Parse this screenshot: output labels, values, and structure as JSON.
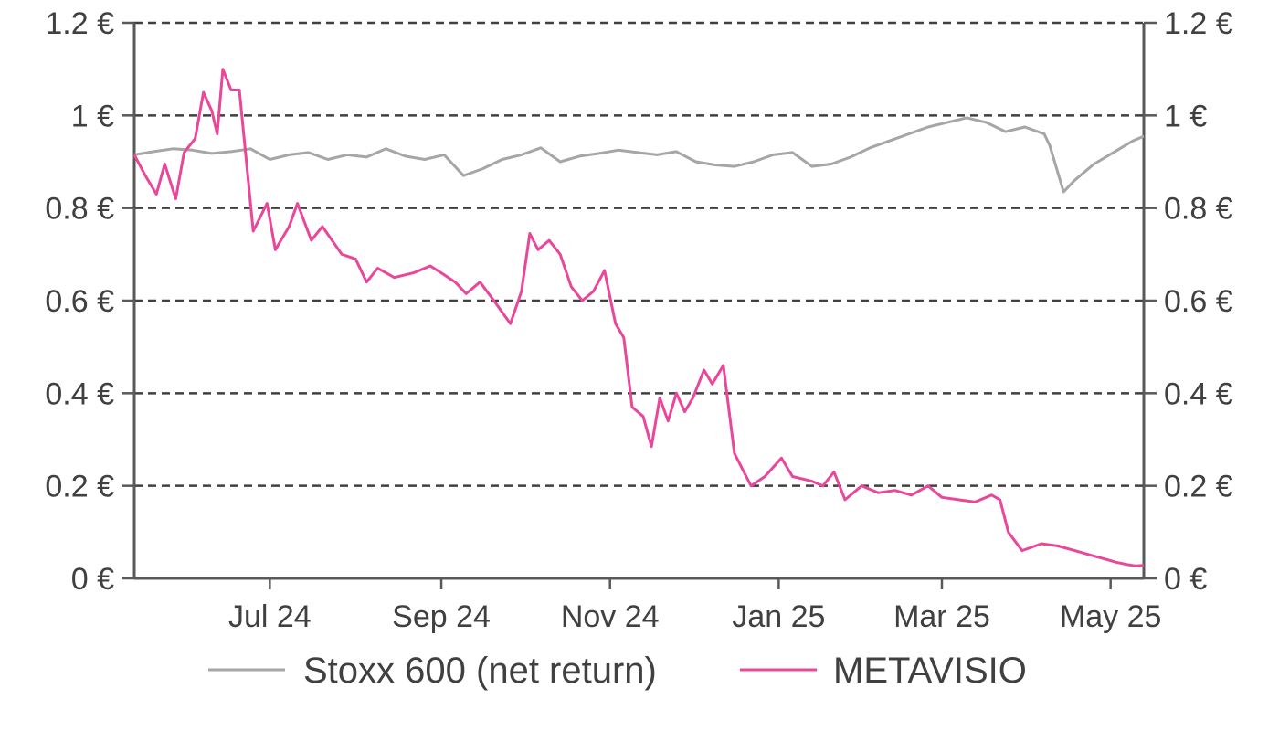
{
  "chart_data": {
    "type": "line",
    "title": "",
    "xlabel": "",
    "ylabel": "",
    "ylim": [
      0,
      1.2
    ],
    "y_ticks": [
      "0 €",
      "0.2 €",
      "0.4 €",
      "0.6 €",
      "0.8 €",
      "1 €",
      "1.2 €"
    ],
    "y_tick_values": [
      0,
      0.2,
      0.4,
      0.6,
      0.8,
      1.0,
      1.2
    ],
    "y_axes": [
      "left",
      "right"
    ],
    "x_ticks": [
      "Jul 24",
      "Sep 24",
      "Nov 24",
      "Jan 25",
      "Mar 25",
      "May 25"
    ],
    "x_tick_dates": [
      "2024-07-01",
      "2024-09-01",
      "2024-11-01",
      "2025-01-01",
      "2025-03-01",
      "2025-05-01"
    ],
    "xlim": [
      "2024-05-13",
      "2025-05-13"
    ],
    "grid": "horizontal-dashed",
    "legend": "bottom",
    "series": [
      {
        "name": "Stoxx 600 (net return)",
        "color": "#a6a6a6",
        "points": [
          [
            "2024-05-13",
            0.915
          ],
          [
            "2024-05-20",
            0.922
          ],
          [
            "2024-05-27",
            0.928
          ],
          [
            "2024-06-03",
            0.925
          ],
          [
            "2024-06-10",
            0.918
          ],
          [
            "2024-06-17",
            0.922
          ],
          [
            "2024-06-24",
            0.928
          ],
          [
            "2024-07-01",
            0.905
          ],
          [
            "2024-07-08",
            0.915
          ],
          [
            "2024-07-15",
            0.92
          ],
          [
            "2024-07-22",
            0.905
          ],
          [
            "2024-07-29",
            0.915
          ],
          [
            "2024-08-05",
            0.91
          ],
          [
            "2024-08-12",
            0.928
          ],
          [
            "2024-08-19",
            0.912
          ],
          [
            "2024-08-26",
            0.905
          ],
          [
            "2024-09-02",
            0.915
          ],
          [
            "2024-09-09",
            0.87
          ],
          [
            "2024-09-16",
            0.885
          ],
          [
            "2024-09-23",
            0.905
          ],
          [
            "2024-09-30",
            0.915
          ],
          [
            "2024-10-07",
            0.93
          ],
          [
            "2024-10-14",
            0.9
          ],
          [
            "2024-10-21",
            0.912
          ],
          [
            "2024-10-28",
            0.918
          ],
          [
            "2024-11-04",
            0.925
          ],
          [
            "2024-11-11",
            0.92
          ],
          [
            "2024-11-18",
            0.915
          ],
          [
            "2024-11-25",
            0.922
          ],
          [
            "2024-12-02",
            0.9
          ],
          [
            "2024-12-09",
            0.893
          ],
          [
            "2024-12-16",
            0.89
          ],
          [
            "2024-12-23",
            0.9
          ],
          [
            "2024-12-30",
            0.915
          ],
          [
            "2025-01-06",
            0.92
          ],
          [
            "2025-01-13",
            0.89
          ],
          [
            "2025-01-20",
            0.895
          ],
          [
            "2025-01-27",
            0.91
          ],
          [
            "2025-02-03",
            0.93
          ],
          [
            "2025-02-10",
            0.945
          ],
          [
            "2025-02-17",
            0.96
          ],
          [
            "2025-02-24",
            0.975
          ],
          [
            "2025-03-03",
            0.985
          ],
          [
            "2025-03-10",
            0.995
          ],
          [
            "2025-03-17",
            0.985
          ],
          [
            "2025-03-24",
            0.965
          ],
          [
            "2025-03-31",
            0.975
          ],
          [
            "2025-04-07",
            0.96
          ],
          [
            "2025-04-09",
            0.935
          ],
          [
            "2025-04-14",
            0.835
          ],
          [
            "2025-04-18",
            0.86
          ],
          [
            "2025-04-25",
            0.895
          ],
          [
            "2025-05-02",
            0.92
          ],
          [
            "2025-05-09",
            0.945
          ],
          [
            "2025-05-13",
            0.955
          ]
        ]
      },
      {
        "name": "METAVISIO",
        "color": "#e8479a",
        "points": [
          [
            "2024-05-13",
            0.915
          ],
          [
            "2024-05-17",
            0.87
          ],
          [
            "2024-05-21",
            0.83
          ],
          [
            "2024-05-24",
            0.895
          ],
          [
            "2024-05-28",
            0.82
          ],
          [
            "2024-05-31",
            0.92
          ],
          [
            "2024-06-04",
            0.95
          ],
          [
            "2024-06-07",
            1.05
          ],
          [
            "2024-06-10",
            1.01
          ],
          [
            "2024-06-12",
            0.96
          ],
          [
            "2024-06-14",
            1.1
          ],
          [
            "2024-06-17",
            1.055
          ],
          [
            "2024-06-20",
            1.055
          ],
          [
            "2024-06-25",
            0.75
          ],
          [
            "2024-06-30",
            0.81
          ],
          [
            "2024-07-03",
            0.71
          ],
          [
            "2024-07-08",
            0.76
          ],
          [
            "2024-07-11",
            0.81
          ],
          [
            "2024-07-16",
            0.73
          ],
          [
            "2024-07-20",
            0.76
          ],
          [
            "2024-07-27",
            0.7
          ],
          [
            "2024-08-01",
            0.69
          ],
          [
            "2024-08-05",
            0.64
          ],
          [
            "2024-08-09",
            0.67
          ],
          [
            "2024-08-15",
            0.65
          ],
          [
            "2024-08-22",
            0.66
          ],
          [
            "2024-08-28",
            0.675
          ],
          [
            "2024-09-01",
            0.66
          ],
          [
            "2024-09-06",
            0.64
          ],
          [
            "2024-09-10",
            0.615
          ],
          [
            "2024-09-15",
            0.64
          ],
          [
            "2024-09-20",
            0.6
          ],
          [
            "2024-09-26",
            0.55
          ],
          [
            "2024-09-30",
            0.62
          ],
          [
            "2024-10-03",
            0.745
          ],
          [
            "2024-10-06",
            0.71
          ],
          [
            "2024-10-10",
            0.73
          ],
          [
            "2024-10-14",
            0.7
          ],
          [
            "2024-10-18",
            0.63
          ],
          [
            "2024-10-22",
            0.6
          ],
          [
            "2024-10-26",
            0.62
          ],
          [
            "2024-10-30",
            0.665
          ],
          [
            "2024-11-03",
            0.55
          ],
          [
            "2024-11-06",
            0.52
          ],
          [
            "2024-11-09",
            0.37
          ],
          [
            "2024-11-13",
            0.35
          ],
          [
            "2024-11-16",
            0.285
          ],
          [
            "2024-11-19",
            0.39
          ],
          [
            "2024-11-22",
            0.34
          ],
          [
            "2024-11-25",
            0.4
          ],
          [
            "2024-11-28",
            0.36
          ],
          [
            "2024-12-01",
            0.39
          ],
          [
            "2024-12-05",
            0.45
          ],
          [
            "2024-12-08",
            0.42
          ],
          [
            "2024-12-12",
            0.46
          ],
          [
            "2024-12-16",
            0.27
          ],
          [
            "2024-12-22",
            0.2
          ],
          [
            "2024-12-27",
            0.22
          ],
          [
            "2025-01-02",
            0.26
          ],
          [
            "2025-01-06",
            0.22
          ],
          [
            "2025-01-13",
            0.21
          ],
          [
            "2025-01-17",
            0.2
          ],
          [
            "2025-01-21",
            0.23
          ],
          [
            "2025-01-25",
            0.17
          ],
          [
            "2025-01-31",
            0.2
          ],
          [
            "2025-02-06",
            0.185
          ],
          [
            "2025-02-12",
            0.19
          ],
          [
            "2025-02-18",
            0.18
          ],
          [
            "2025-02-24",
            0.2
          ],
          [
            "2025-03-01",
            0.175
          ],
          [
            "2025-03-07",
            0.17
          ],
          [
            "2025-03-13",
            0.165
          ],
          [
            "2025-03-19",
            0.18
          ],
          [
            "2025-03-22",
            0.17
          ],
          [
            "2025-03-25",
            0.1
          ],
          [
            "2025-03-30",
            0.06
          ],
          [
            "2025-04-06",
            0.075
          ],
          [
            "2025-04-12",
            0.07
          ],
          [
            "2025-04-18",
            0.06
          ],
          [
            "2025-04-24",
            0.05
          ],
          [
            "2025-04-30",
            0.04
          ],
          [
            "2025-05-03",
            0.035
          ],
          [
            "2025-05-07",
            0.03
          ],
          [
            "2025-05-10",
            0.027
          ],
          [
            "2025-05-13",
            0.028
          ]
        ]
      }
    ]
  }
}
